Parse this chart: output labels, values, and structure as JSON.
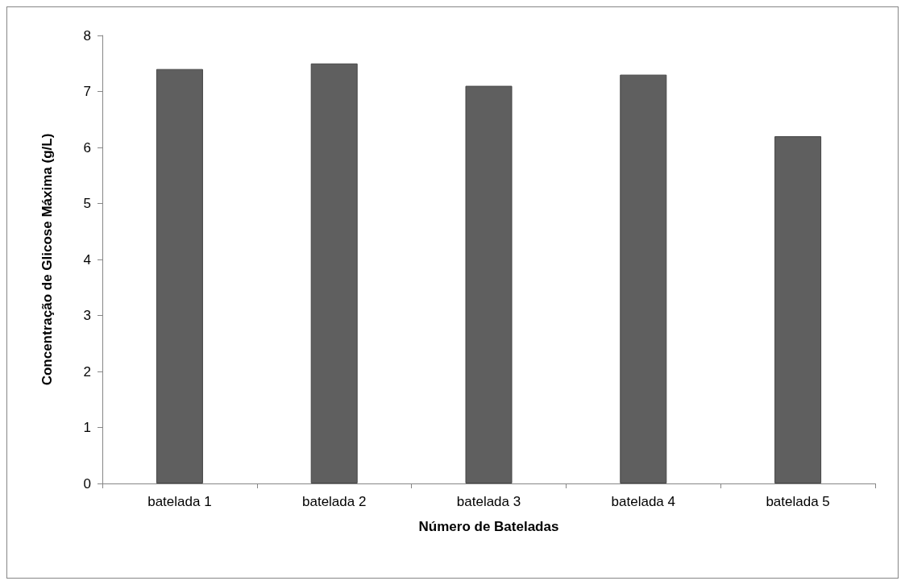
{
  "chart_data": {
    "type": "bar",
    "xlabel": "Número de Bateladas",
    "ylabel": "Concentração de Glicose Máxima (g/L)",
    "categories": [
      "batelada 1",
      "batelada 2",
      "batelada 3",
      "batelada 4",
      "batelada 5"
    ],
    "values": [
      7.4,
      7.5,
      7.1,
      7.3,
      6.2
    ],
    "color": "#5f5f5f",
    "ylim": [
      0,
      8
    ],
    "yticks": [
      0,
      1,
      2,
      3,
      4,
      5,
      6,
      7,
      8
    ]
  }
}
